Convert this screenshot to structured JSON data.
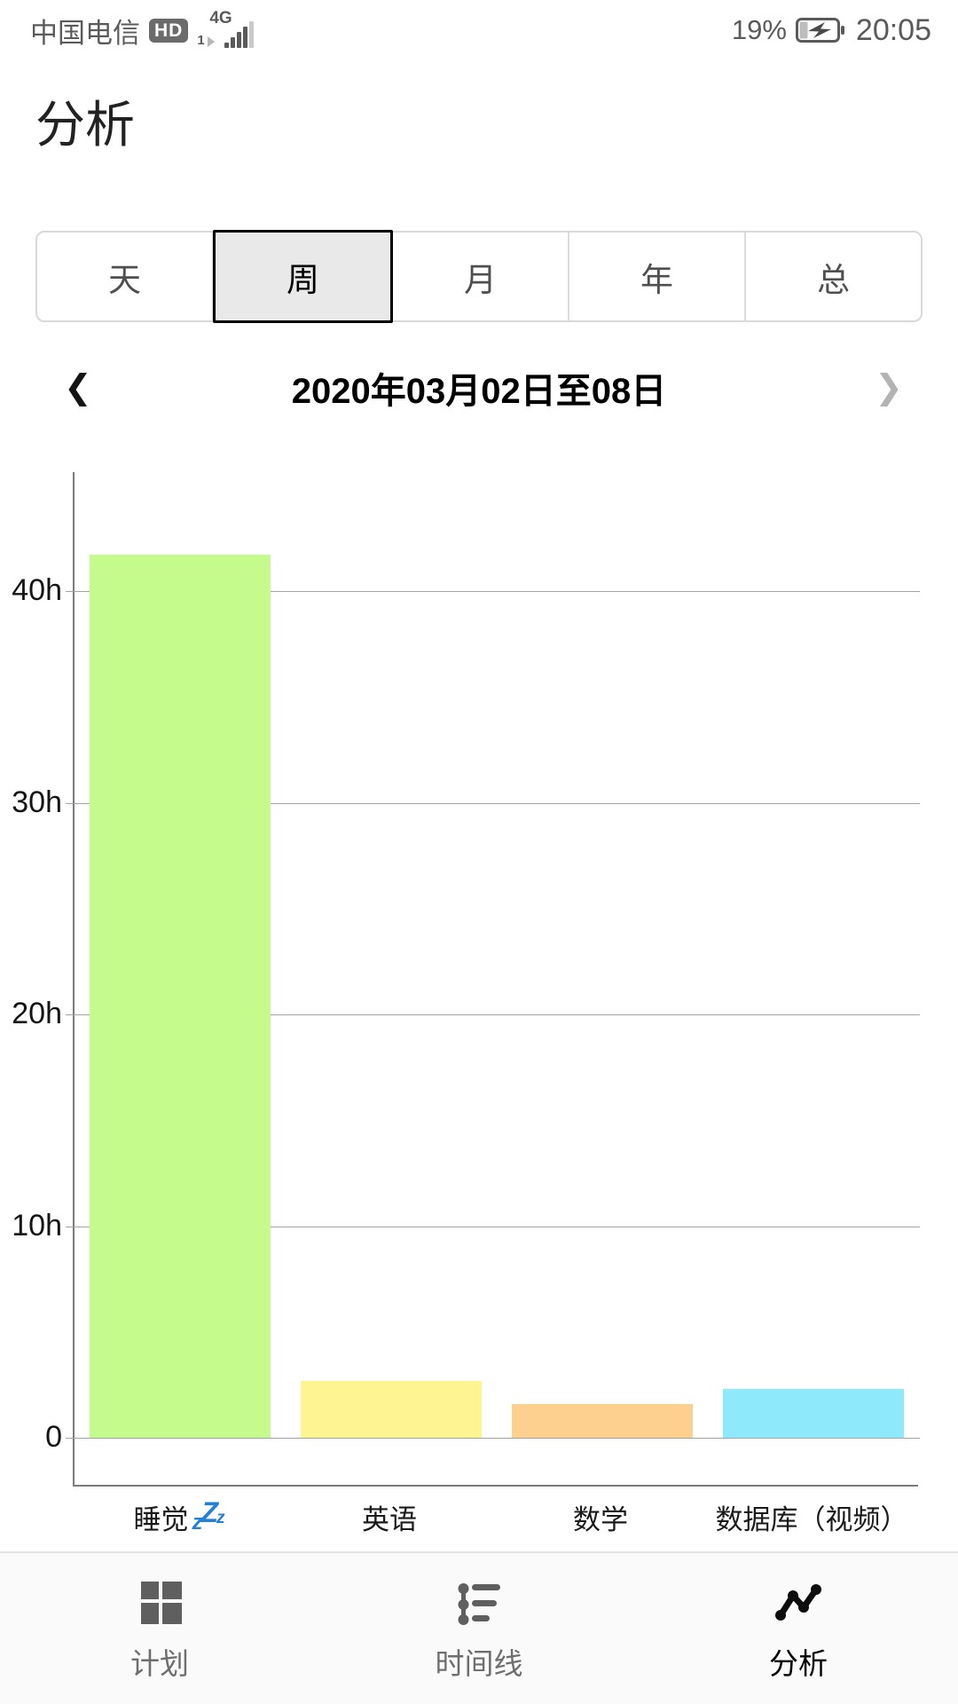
{
  "status_bar": {
    "carrier": "中国电信",
    "hd_badge": "HD",
    "network": "4G",
    "sim_slot": "1",
    "battery_percent": "19%",
    "time": "20:05"
  },
  "header": {
    "title": "分析"
  },
  "tabs": [
    {
      "label": "天",
      "selected": false
    },
    {
      "label": "周",
      "selected": true
    },
    {
      "label": "月",
      "selected": false
    },
    {
      "label": "年",
      "selected": false
    },
    {
      "label": "总",
      "selected": false
    }
  ],
  "date_nav": {
    "prev_icon": "❮",
    "label": "2020年03月02日至08日",
    "next_icon": "❯"
  },
  "chart_data": {
    "type": "bar",
    "categories": [
      "睡觉",
      "英语",
      "数学",
      "数据库（视频）"
    ],
    "values": [
      41.7,
      2.7,
      1.6,
      2.3
    ],
    "unit": "hours",
    "bar_colors": [
      "#c5fa8c",
      "#fef492",
      "#fdd08f",
      "#8ee9fb"
    ],
    "category_icons": [
      "zzz-icon",
      null,
      null,
      null
    ],
    "zzz_glyphs": [
      "z",
      "Z",
      "z"
    ],
    "yticks": [
      {
        "label": "0",
        "hours": 0
      },
      {
        "label": "10h",
        "hours": 10
      },
      {
        "label": "20h",
        "hours": 20
      },
      {
        "label": "30h",
        "hours": 30
      },
      {
        "label": "40h",
        "hours": 40
      }
    ],
    "ylim": [
      0,
      45.6
    ],
    "grid": true,
    "legend": "none",
    "title": ""
  },
  "bottom_nav": {
    "items": [
      {
        "label": "计划",
        "icon": "dashboard-grid-icon",
        "active": false
      },
      {
        "label": "时间线",
        "icon": "timeline-icon",
        "active": false
      },
      {
        "label": "分析",
        "icon": "trend-line-icon",
        "active": true
      }
    ]
  },
  "colors": {
    "accent_blue_zzz": "#2380d8",
    "grid_line": "#a3a3a3",
    "axis": "#7a7a7a",
    "tab_selected_bg": "#e9e9e9",
    "tab_selected_border": "#000000",
    "nav_bg": "#fafafa"
  }
}
